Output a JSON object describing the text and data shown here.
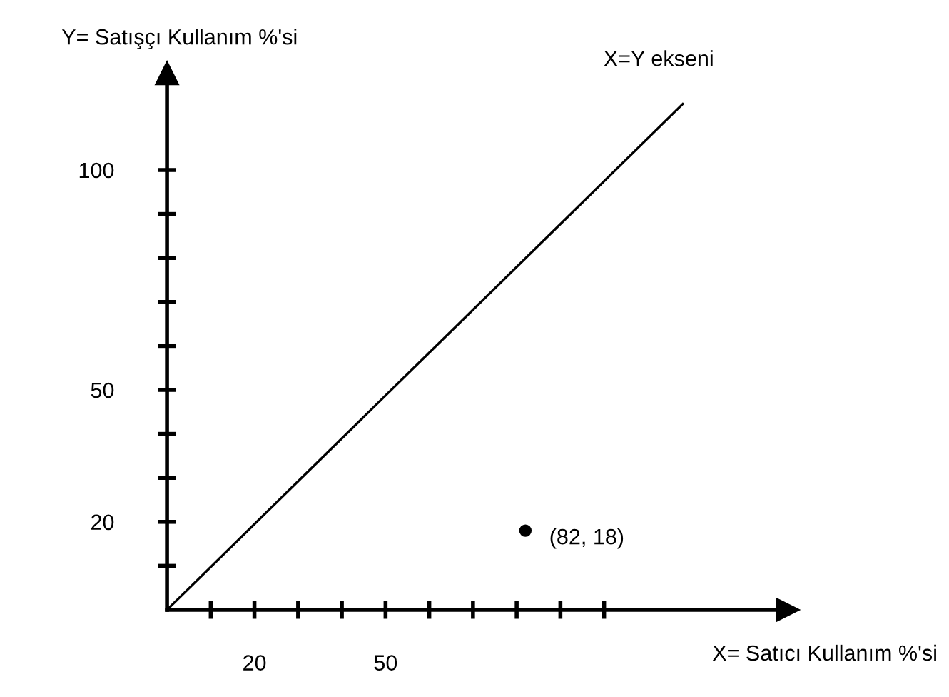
{
  "chart_data": {
    "type": "scatter",
    "xlabel": "X= Satıcı Kullanım %'si",
    "ylabel": "Y= Satışçı Kullanım %'si",
    "series": [
      {
        "type": "line",
        "color": "#000000",
        "x": [
          0,
          118
        ],
        "values": [
          0,
          115
        ],
        "marker": "none"
      },
      {
        "color": "#000000",
        "x": [
          82
        ],
        "values": [
          18
        ],
        "marker": "circle"
      }
    ],
    "annotations": [
      {
        "text": "X=Y ekseni",
        "x": 118,
        "y": 115
      },
      {
        "text": "(82, 18)",
        "x": 82,
        "y": 18
      }
    ],
    "xlim": [
      0,
      142
    ],
    "ylim": [
      0,
      122
    ],
    "xticks": [
      {
        "value": 10,
        "label": null
      },
      20,
      {
        "value": 30,
        "label": null
      },
      {
        "value": 40,
        "label": null
      },
      50,
      {
        "value": 60,
        "label": null
      },
      {
        "value": 70,
        "label": null
      },
      {
        "value": 80,
        "label": null
      },
      {
        "value": 90,
        "label": null
      },
      {
        "value": 100,
        "label": null
      }
    ],
    "yticks": [
      {
        "value": 10,
        "label": null
      },
      20,
      {
        "value": 30,
        "label": null
      },
      {
        "value": 40,
        "label": null
      },
      50,
      {
        "value": 60,
        "label": null
      },
      {
        "value": 70,
        "label": null
      },
      {
        "value": 80,
        "label": null
      },
      {
        "value": 90,
        "label": null
      },
      100
    ],
    "grid": false,
    "legend": false
  }
}
